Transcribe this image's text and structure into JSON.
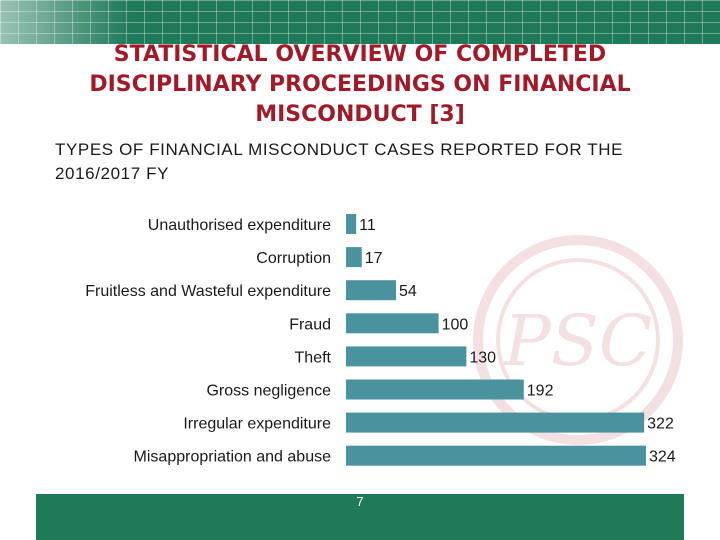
{
  "slide": {
    "title": "STATISTICAL OVERVIEW OF COMPLETED DISCIPLINARY PROCEEDINGS ON FINANCIAL MISCONDUCT [3]",
    "page_number": "7",
    "colors": {
      "accent_green": "#1f7a5a",
      "title_red": "#a01b2a",
      "bar_teal": "#4a929e"
    },
    "watermark_logo_text": "PSC"
  },
  "chart_data": {
    "type": "bar",
    "orientation": "horizontal",
    "title": "TYPES OF FINANCIAL MISCONDUCT CASES REPORTED FOR THE 2016/2017 FY",
    "xlabel": "",
    "ylabel": "",
    "categories": [
      "Unauthorised expenditure",
      "Corruption",
      "Fruitless and Wasteful expenditure",
      "Fraud",
      "Theft",
      "Gross negligence",
      "Irregular expenditure",
      "Misappropriation and abuse"
    ],
    "values": [
      11,
      17,
      54,
      100,
      130,
      192,
      322,
      324
    ],
    "xlim": [
      0,
      324
    ],
    "grid": false,
    "legend": "none",
    "data_labels": true
  }
}
